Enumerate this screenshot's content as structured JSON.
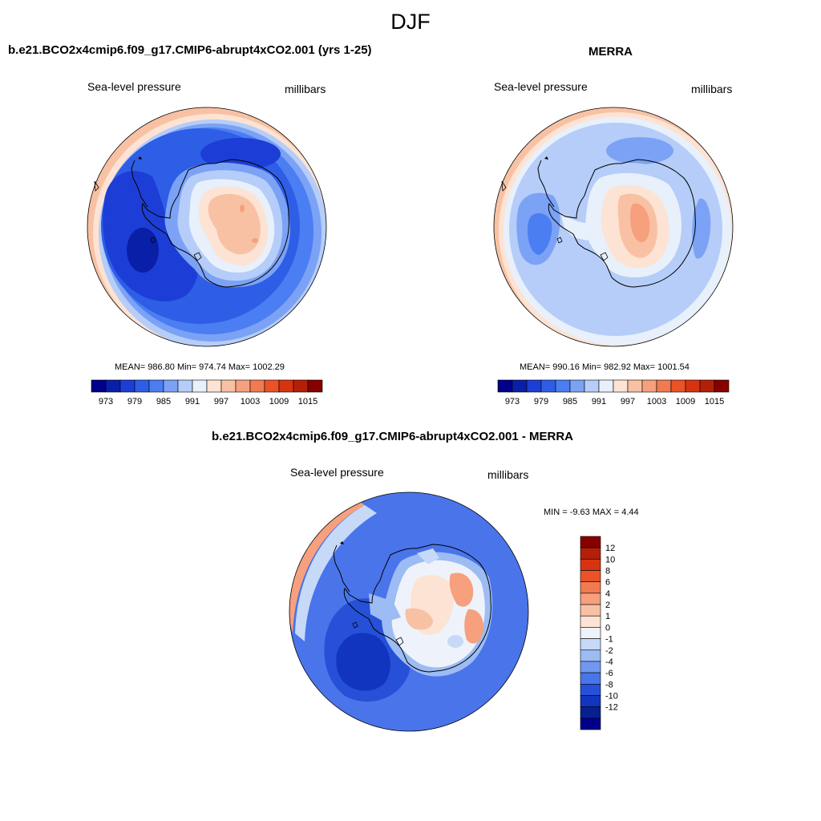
{
  "season": "DJF",
  "panels": [
    {
      "title": "b.e21.BCO2x4cmip6.f09_g17.CMIP6-abrupt4xCO2.001 (yrs 1-25)",
      "field": "Sea-level pressure",
      "units": "millibars",
      "stats": "MEAN= 986.80  Min= 974.74  Max= 1002.29",
      "map": {
        "projection": "south-polar-stereographic",
        "palette": "blue-white-red"
      },
      "colorbar": {
        "orientation": "horizontal",
        "colors": [
          "#00008b",
          "#0a1fa8",
          "#1c3ed6",
          "#2e5ee6",
          "#4a7ef2",
          "#7ba2f5",
          "#b5cdf8",
          "#e8f0fb",
          "#fde3d3",
          "#f9c1a4",
          "#f6a07d",
          "#f27a51",
          "#ec5227",
          "#d63410",
          "#b41f08",
          "#860000"
        ],
        "tick_labels": [
          "973",
          "979",
          "985",
          "991",
          "997",
          "1003",
          "1009",
          "1015"
        ]
      }
    },
    {
      "title": "MERRA",
      "field": "Sea-level pressure",
      "units": "millibars",
      "stats": "MEAN= 990.16  Min= 982.92  Max= 1001.54",
      "map": {
        "projection": "south-polar-stereographic",
        "palette": "blue-white-red"
      },
      "colorbar": {
        "orientation": "horizontal",
        "colors": [
          "#00008b",
          "#0a1fa8",
          "#1c3ed6",
          "#2e5ee6",
          "#4a7ef2",
          "#7ba2f5",
          "#b5cdf8",
          "#e8f0fb",
          "#fde3d3",
          "#f9c1a4",
          "#f6a07d",
          "#f27a51",
          "#ec5227",
          "#d63410",
          "#b41f08",
          "#860000"
        ],
        "tick_labels": [
          "973",
          "979",
          "985",
          "991",
          "997",
          "1003",
          "1009",
          "1015"
        ]
      }
    },
    {
      "title": "b.e21.BCO2x4cmip6.f09_g17.CMIP6-abrupt4xCO2.001 - MERRA",
      "field": "Sea-level pressure",
      "units": "millibars",
      "stats": "MIN =  -9.63 MAX =   4.44",
      "map": {
        "projection": "south-polar-stereographic",
        "palette": "blue-white-red"
      },
      "colorbar": {
        "orientation": "vertical",
        "colors": [
          "#860000",
          "#b41f08",
          "#d63410",
          "#ec5227",
          "#f27a51",
          "#f6a07d",
          "#f9c1a4",
          "#fde3d3",
          "#eef3fb",
          "#c6daf8",
          "#9dbcf4",
          "#7098f0",
          "#4a74ea",
          "#2650d8",
          "#1235c0",
          "#06208f",
          "#00008b"
        ],
        "tick_labels": [
          "12",
          "10",
          "8",
          "6",
          "4",
          "2",
          "1",
          "0",
          "-1",
          "-2",
          "-4",
          "-6",
          "-8",
          "-10",
          "-12"
        ]
      }
    }
  ]
}
